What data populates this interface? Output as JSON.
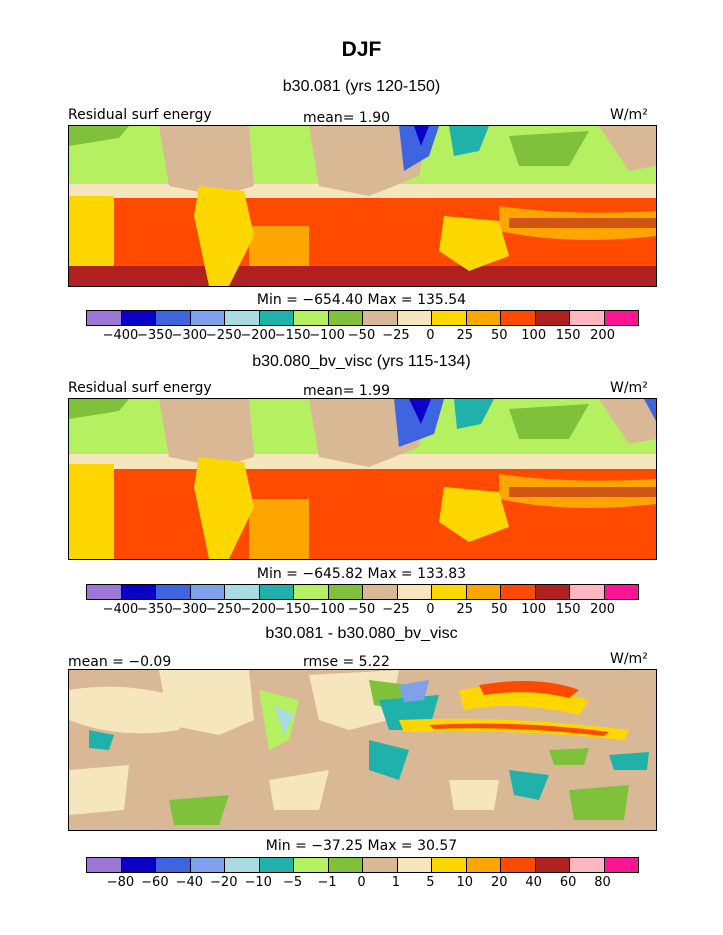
{
  "title": "DJF",
  "units_label": "W/m²",
  "panels": [
    {
      "subtitle": "b30.081 (yrs 120-150)",
      "left_label": "Residual surf energy",
      "center_label": "mean=   1.90",
      "minmax": "Min = −654.40 Max = 135.54",
      "scale": "abs"
    },
    {
      "subtitle": "b30.080_bv_visc (yrs 115-134)",
      "left_label": "Residual surf energy",
      "center_label": "mean=   1.99",
      "minmax": "Min = −645.82 Max = 133.83",
      "scale": "abs"
    },
    {
      "subtitle": "b30.081 - b30.080_bv_visc",
      "left_label": "mean =  −0.09",
      "center_label": "rmse =   5.22",
      "minmax": "Min = −37.25 Max =  30.57",
      "scale": "diff"
    }
  ],
  "colorbar_abs": {
    "colors": [
      "#9b77d8",
      "#0a00c8",
      "#3f64e0",
      "#7fa0ea",
      "#a8dce0",
      "#20b2aa",
      "#b4f060",
      "#7fc13a",
      "#d9b896",
      "#f5e6be",
      "#ffd700",
      "#ffa500",
      "#ff4a00",
      "#b02020",
      "#ffb6c1",
      "#ff1493"
    ],
    "labels": [
      "−400",
      "−350",
      "−300",
      "−250",
      "−200",
      "−150",
      "−100",
      "−50",
      "−25",
      "0",
      "25",
      "50",
      "100",
      "150",
      "200"
    ]
  },
  "colorbar_diff": {
    "colors": [
      "#9b77d8",
      "#0a00c8",
      "#3f64e0",
      "#7fa0ea",
      "#a8dce0",
      "#20b2aa",
      "#b4f060",
      "#7fc13a",
      "#d9b896",
      "#f5e6be",
      "#ffd700",
      "#ffa500",
      "#ff4a00",
      "#b02020",
      "#ffb6c1",
      "#ff1493"
    ],
    "labels": [
      "−80",
      "−60",
      "−40",
      "−20",
      "−10",
      "−5",
      "−1",
      "0",
      "1",
      "5",
      "10",
      "20",
      "40",
      "60",
      "80"
    ]
  }
}
